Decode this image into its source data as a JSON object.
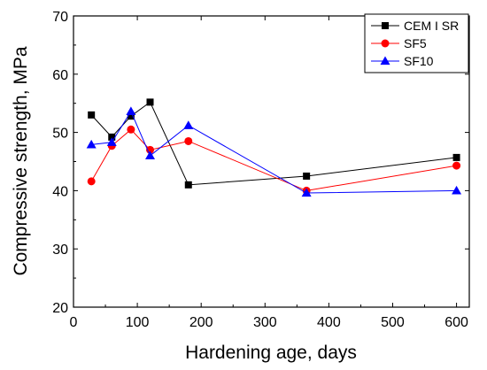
{
  "chart_data": {
    "type": "line",
    "xlabel": "Hardening age, days",
    "ylabel": "Compressive strength, MPa",
    "xlim": [
      0,
      620
    ],
    "ylim": [
      20,
      70
    ],
    "xticks": [
      0,
      100,
      200,
      300,
      400,
      500,
      600
    ],
    "yticks": [
      20,
      30,
      40,
      50,
      60,
      70
    ],
    "legend_position": "top-right",
    "grid": false,
    "series": [
      {
        "name": "CEM I SR",
        "color": "#000000",
        "marker": "square",
        "x": [
          28,
          60,
          90,
          120,
          180,
          365,
          600
        ],
        "y": [
          53.0,
          49.2,
          52.8,
          55.2,
          41.0,
          42.5,
          45.7
        ]
      },
      {
        "name": "SF5",
        "color": "#ff0000",
        "marker": "circle",
        "x": [
          28,
          60,
          90,
          120,
          180,
          365,
          600
        ],
        "y": [
          41.6,
          47.7,
          50.5,
          47.0,
          48.5,
          40.0,
          44.3
        ]
      },
      {
        "name": "SF10",
        "color": "#0000ff",
        "marker": "triangle",
        "x": [
          28,
          60,
          90,
          120,
          180,
          365,
          600
        ],
        "y": [
          47.9,
          48.3,
          53.6,
          46.0,
          51.2,
          39.6,
          40.0
        ]
      }
    ]
  }
}
